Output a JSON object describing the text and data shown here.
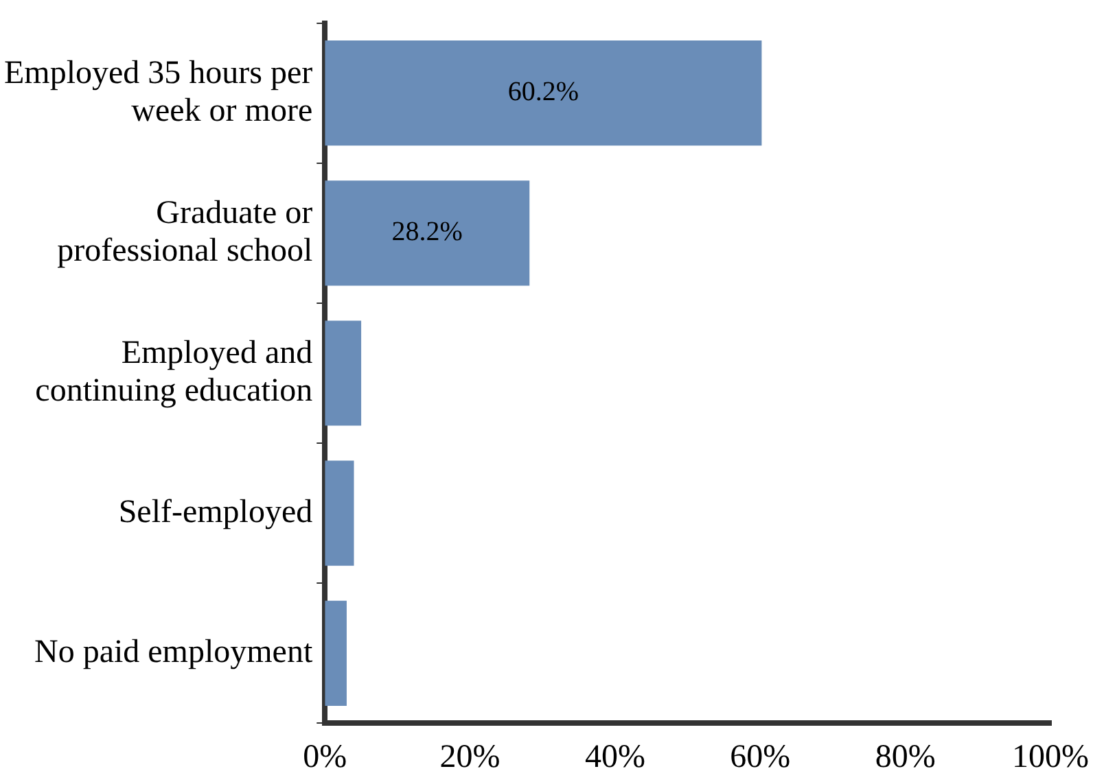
{
  "chart_data": {
    "type": "bar",
    "orientation": "horizontal",
    "categories": [
      "Employed 35 hours per week or more",
      "Graduate or professional school",
      "Employed and continuing education",
      "Self-employed",
      "No paid employment"
    ],
    "values": [
      60.2,
      28.2,
      5,
      4,
      3
    ],
    "value_labels": [
      "60.2%",
      "28.2%",
      null,
      null,
      null
    ],
    "color": "#6a8db8",
    "xlim": [
      0,
      100
    ],
    "xticks": [
      {
        "value": 0,
        "label": "0%"
      },
      {
        "value": 20,
        "label": "20%"
      },
      {
        "value": 40,
        "label": "40%"
      },
      {
        "value": 60,
        "label": "60%"
      },
      {
        "value": 80,
        "label": "80%"
      },
      {
        "value": 100,
        "label": "100%"
      }
    ],
    "grid": false,
    "legend": false
  }
}
